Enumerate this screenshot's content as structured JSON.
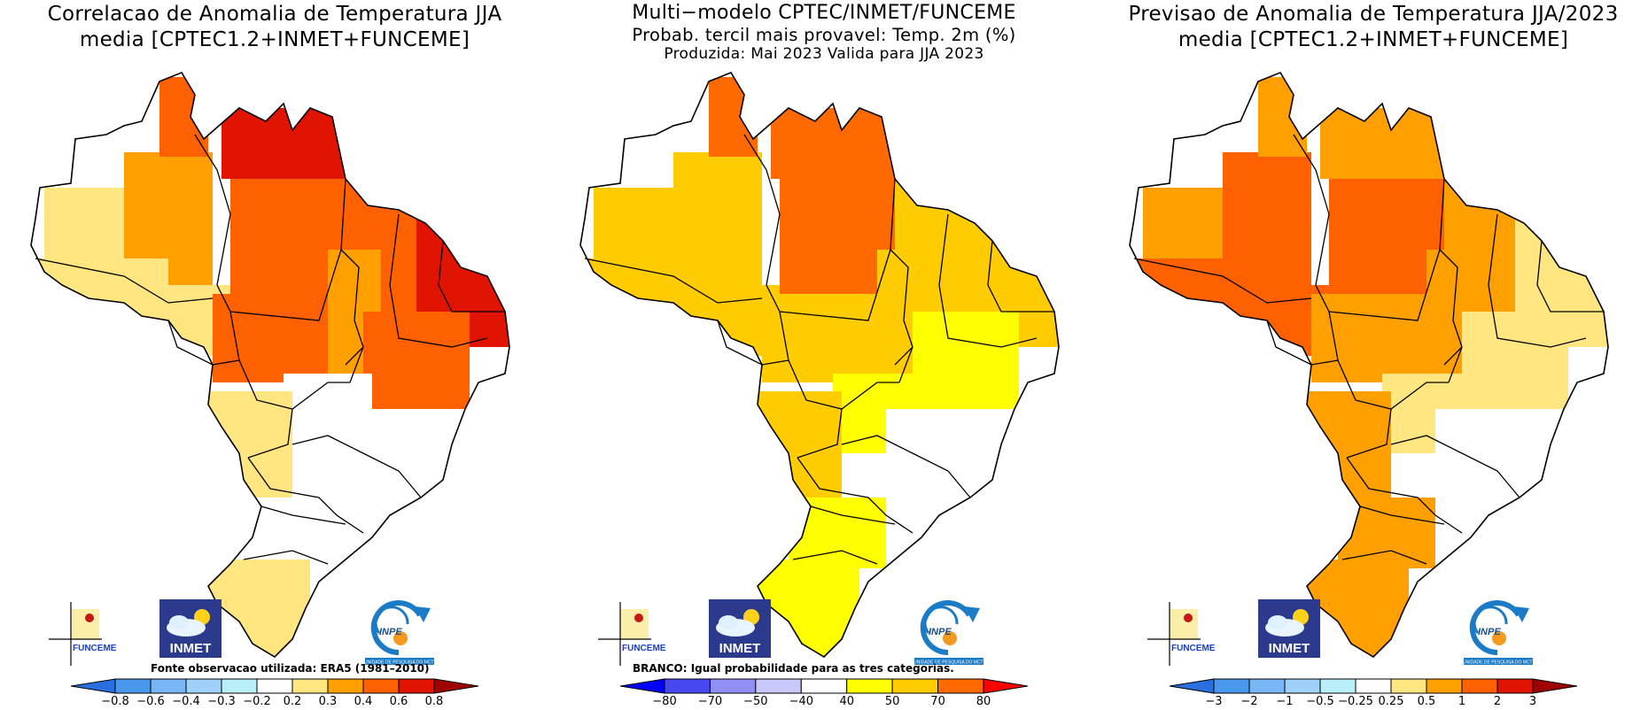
{
  "panels": [
    {
      "id": "correlation",
      "title_lines": [
        "Correlacao de Anomalia de Temperatura JJA",
        "media [CPTEC1.2+INMET+FUNCEME]"
      ],
      "note": "Fonte observacao utilizada: ERA5 (1981–2010)",
      "colorbar": {
        "labels": [
          "−0.8",
          "−0.6",
          "−0.4",
          "−0.3",
          "−0.2",
          "0.2",
          "0.3",
          "0.4",
          "0.6",
          "0.8"
        ],
        "colors": [
          "#2a6fe0",
          "#4a97ee",
          "#78b6f5",
          "#9fd0f8",
          "#b9f0f7",
          "#ffffff",
          "#ffe680",
          "#ffa000",
          "#ff6000",
          "#e01400",
          "#a00000"
        ],
        "left_tip": "#2a6fe0",
        "right_tip": "#a00000"
      },
      "field": "corr"
    },
    {
      "id": "tercile-probability",
      "title_lines": [
        "Multi−modelo CPTEC/INMET/FUNCEME",
        "Probab. tercil mais provavel: Temp. 2m (%)",
        "Produzida: Mai 2023  Valida para JJA 2023"
      ],
      "note": "BRANCO: Igual probabilidade para as tres categorias.",
      "colorbar": {
        "labels": [
          "−80",
          "−70",
          "−50",
          "−40",
          "40",
          "50",
          "70",
          "80"
        ],
        "colors": [
          "#0000ff",
          "#4848f0",
          "#9090f4",
          "#c8c8fa",
          "#ffffff",
          "#ffff00",
          "#ffcc00",
          "#ff6a00",
          "#ff0000"
        ],
        "left_tip": "#0000ff",
        "right_tip": "#ff0000"
      },
      "field": "prob"
    },
    {
      "id": "anomaly-forecast",
      "title_lines": [
        "Previsao de Anomalia de Temperatura JJA/2023",
        "media [CPTEC1.2+INMET+FUNCEME]"
      ],
      "note": "",
      "colorbar": {
        "labels": [
          "−3",
          "−2",
          "−1",
          "−0.5",
          "−0.25",
          "0.25",
          "0.5",
          "1",
          "2",
          "3"
        ],
        "colors": [
          "#2a6fe0",
          "#4a97ee",
          "#78b6f5",
          "#9fd0f8",
          "#b9f0f7",
          "#ffffff",
          "#ffe680",
          "#ffa000",
          "#ff6000",
          "#e01400",
          "#a00000"
        ],
        "left_tip": "#2a6fe0",
        "right_tip": "#a00000"
      },
      "field": "anom"
    }
  ],
  "logos": {
    "funceme": "FUNCEME",
    "inmet": "INMET",
    "inpe": "INPE",
    "inpe_caption": "UNIDADE DE PESQUISA DO MCTI"
  },
  "regions": [
    {
      "name": "north-west-amazonas",
      "corr": 0.25,
      "prob": 55,
      "anom": 0.7
    },
    {
      "name": "central-amazonas",
      "corr": 0.35,
      "prob": 60,
      "anom": 1.5
    },
    {
      "name": "roraima",
      "corr": 0.5,
      "prob": 72,
      "anom": 0.7
    },
    {
      "name": "para",
      "corr": 0.5,
      "prob": 75,
      "anom": 1.5
    },
    {
      "name": "north-para-amapa",
      "corr": 0.65,
      "prob": 72,
      "anom": 0.7
    },
    {
      "name": "maranhao-piaui",
      "corr": 0.5,
      "prob": 60,
      "anom": 0.7
    },
    {
      "name": "ceara-rn-east",
      "corr": 0.65,
      "prob": 55,
      "anom": 0.3
    },
    {
      "name": "acre-rondonia",
      "corr": 0.25,
      "prob": 62,
      "anom": 1.5
    },
    {
      "name": "mato-grosso",
      "corr": 0.45,
      "prob": 60,
      "anom": 0.7
    },
    {
      "name": "tocantins",
      "corr": 0.35,
      "prob": 55,
      "anom": 0.7
    },
    {
      "name": "bahia",
      "corr": 0.45,
      "prob": 45,
      "anom": 0.3
    },
    {
      "name": "goias-df",
      "corr": 0.0,
      "prob": 45,
      "anom": 0.3
    },
    {
      "name": "mato-grosso-sul",
      "corr": 0.25,
      "prob": 55,
      "anom": 0.7
    },
    {
      "name": "minas-southeast",
      "corr": 0.0,
      "prob": 0,
      "anom": 0.0
    },
    {
      "name": "parana-sc",
      "corr": 0.0,
      "prob": 45,
      "anom": 0.7
    },
    {
      "name": "rio-grande-sul",
      "corr": 0.25,
      "prob": 45,
      "anom": 0.7
    }
  ]
}
